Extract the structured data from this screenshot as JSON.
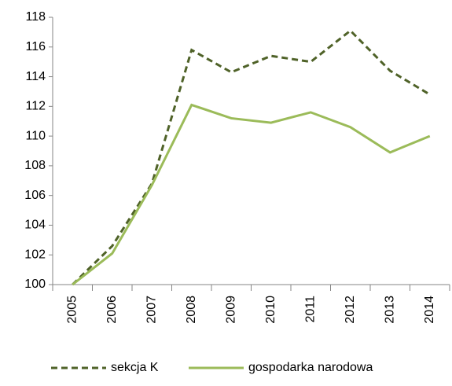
{
  "chart_data": {
    "type": "line",
    "categories": [
      "2005",
      "2006",
      "2007",
      "2008",
      "2009",
      "2010",
      "2011",
      "2012",
      "2013",
      "2014"
    ],
    "series": [
      {
        "name": "sekcja K",
        "color": "#4f6228",
        "dashed": true,
        "values": [
          100,
          102.6,
          106.8,
          115.8,
          114.3,
          115.4,
          115.0,
          117.1,
          114.4,
          112.8
        ]
      },
      {
        "name": "gospodarka narodowa",
        "color": "#9bbb59",
        "dashed": false,
        "values": [
          100,
          102.1,
          106.7,
          112.1,
          111.2,
          110.9,
          111.6,
          110.6,
          108.9,
          110.0
        ]
      }
    ],
    "ylim": [
      100,
      118
    ],
    "yticks": [
      100,
      102,
      104,
      106,
      108,
      110,
      112,
      114,
      116,
      118
    ],
    "grid": false,
    "legend": "bottom"
  }
}
